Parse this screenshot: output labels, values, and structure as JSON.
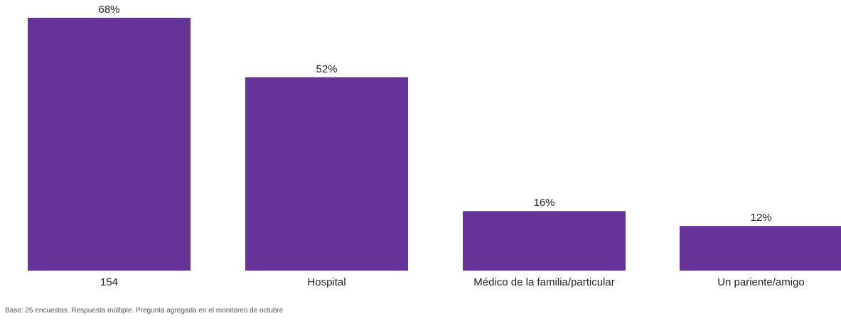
{
  "chart_data": {
    "type": "bar",
    "categories": [
      "154",
      "Hospital",
      "Médico de la familia/particular",
      "Un pariente/amigo"
    ],
    "values": [
      68,
      52,
      16,
      12
    ],
    "value_labels": [
      "68%",
      "52%",
      "16%",
      "12%"
    ],
    "unit": "%",
    "ylim": [
      0,
      68
    ],
    "grid": false,
    "bar_color": "#663399",
    "footnote": "Base: 25 encuestas. Respuesta múltiple. Pregunta agregada en el monitoreo de octubre"
  }
}
